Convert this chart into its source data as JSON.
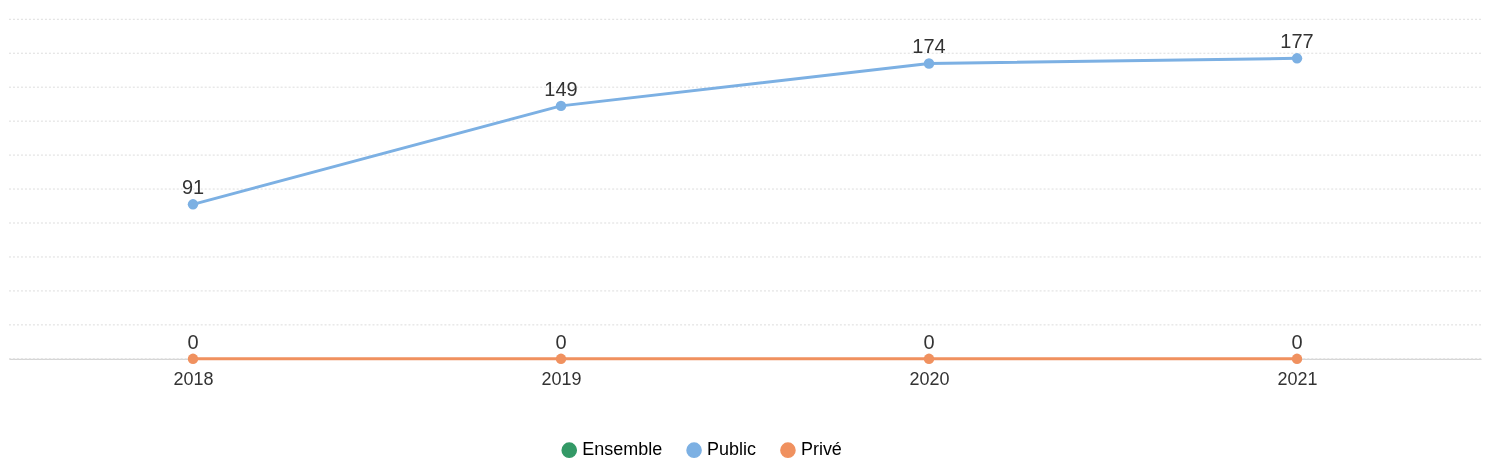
{
  "chart_data": {
    "type": "line",
    "categories": [
      "2018",
      "2019",
      "2020",
      "2021"
    ],
    "series": [
      {
        "name": "Ensemble",
        "color": "#339966",
        "values": [
          null,
          null,
          null,
          null
        ]
      },
      {
        "name": "Public",
        "color": "#7cb0e3",
        "values": [
          91,
          149,
          174,
          177
        ]
      },
      {
        "name": "Privé",
        "color": "#f0915f",
        "values": [
          0,
          0,
          0,
          0
        ]
      }
    ],
    "ylim": [
      0,
      200
    ],
    "yticks": [
      {
        "value": 0,
        "label": null
      },
      {
        "value": 20,
        "label": null
      },
      {
        "value": 40,
        "label": null
      },
      {
        "value": 60,
        "label": null
      },
      {
        "value": 80,
        "label": null
      },
      {
        "value": 100,
        "label": null
      },
      {
        "value": 120,
        "label": null
      },
      {
        "value": 140,
        "label": null
      },
      {
        "value": 160,
        "label": null
      },
      {
        "value": 180,
        "label": null
      },
      {
        "value": 200,
        "label": null
      }
    ],
    "tick_labels": "x",
    "grid": "y",
    "legend": "bottom",
    "marker": "circle",
    "line_style": "solid",
    "data_labels": true
  }
}
